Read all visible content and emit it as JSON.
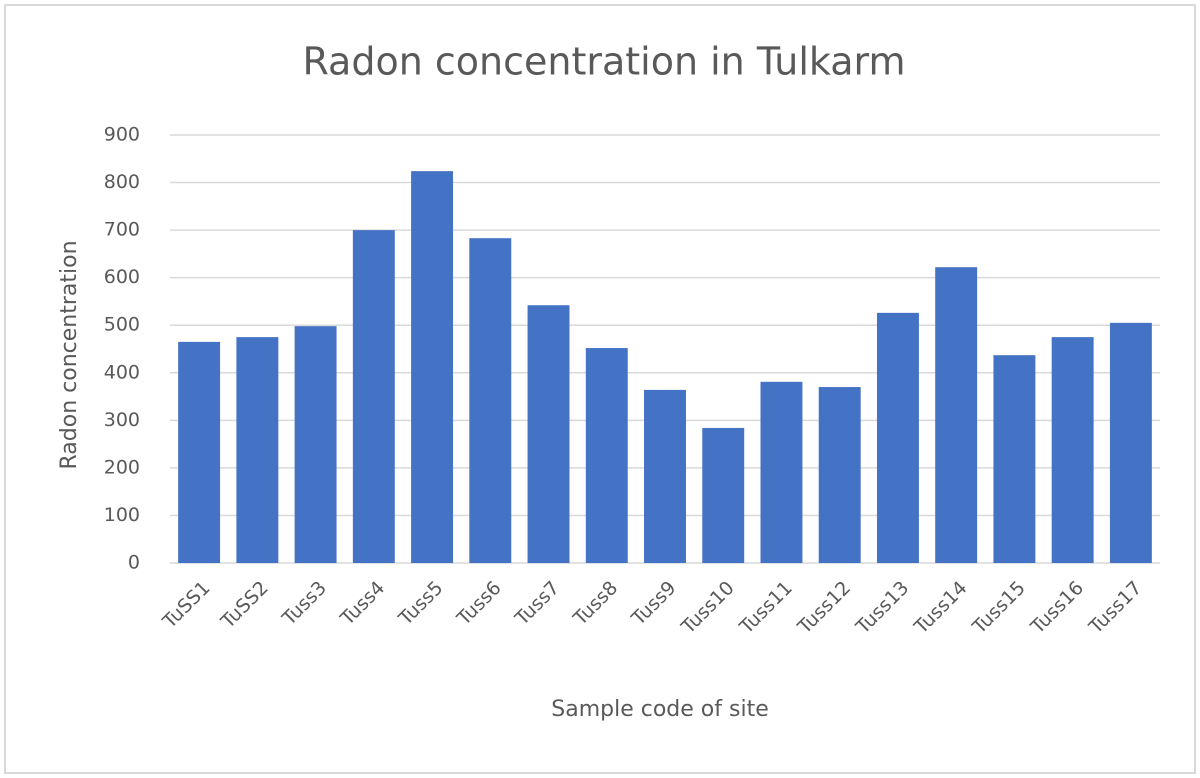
{
  "chart_data": {
    "type": "bar",
    "title": "Radon concentration in Tulkarm",
    "x_label": "Sample code of site",
    "y_label": "Radon concentration",
    "categories": [
      "TuSS1",
      "TuSS2",
      "Tuss3",
      "Tuss4",
      "Tuss5",
      "Tuss6",
      "Tuss7",
      "Tuss8",
      "Tuss9",
      "Tuss10",
      "Tuss11",
      "Tuss12",
      "Tuss13",
      "Tuss14",
      "Tuss15",
      "Tuss16",
      "Tuss17"
    ],
    "values": [
      465,
      475,
      498,
      700,
      824,
      683,
      542,
      452,
      364,
      284,
      381,
      370,
      526,
      622,
      437,
      475,
      505
    ],
    "color": "#4472c4",
    "ylim": [
      0,
      900
    ],
    "yticks": [
      0,
      100,
      200,
      300,
      400,
      500,
      600,
      700,
      800,
      900
    ],
    "grid": true
  }
}
